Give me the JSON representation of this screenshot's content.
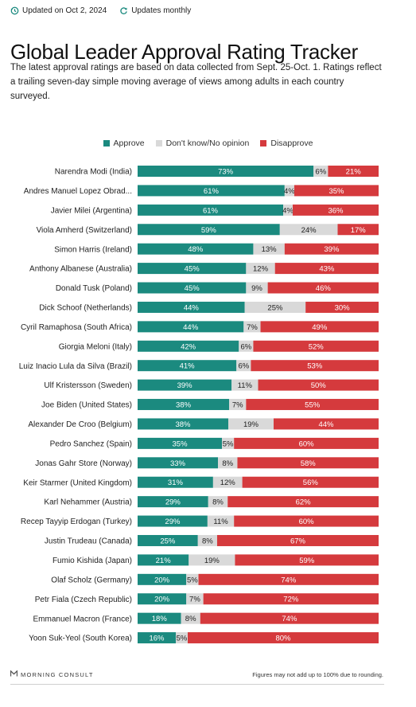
{
  "header": {
    "updated": "Updated on Oct 2, 2024",
    "frequency": "Updates monthly",
    "title": "Global Leader Approval Rating Tracker",
    "subtitle": "The latest approval ratings are based on data collected from Sept. 25-Oct. 1. Ratings reflect a trailing seven-day simple moving average of views among adults in each country surveyed."
  },
  "legend": [
    {
      "label": "Approve",
      "color": "#1b8a7f"
    },
    {
      "label": "Don't know/No opinion",
      "color": "#d9d9d9"
    },
    {
      "label": "Disapprove",
      "color": "#d53a3d"
    }
  ],
  "chart_data": {
    "type": "bar",
    "stacked": true,
    "orientation": "horizontal",
    "categories": [
      "Narendra Modi (India)",
      "Andres Manuel Lopez Obrad...",
      "Javier Milei (Argentina)",
      "Viola Amherd (Switzerland)",
      "Simon Harris (Ireland)",
      "Anthony Albanese (Australia)",
      "Donald Tusk (Poland)",
      "Dick Schoof (Netherlands)",
      "Cyril Ramaphosa (South Africa)",
      "Giorgia Meloni (Italy)",
      "Luiz Inacio Lula da Silva (Brazil)",
      "Ulf Kristersson (Sweden)",
      "Joe Biden (United States)",
      "Alexander De Croo (Belgium)",
      "Pedro Sanchez (Spain)",
      "Jonas Gahr Store (Norway)",
      "Keir Starmer (United Kingdom)",
      "Karl Nehammer (Austria)",
      "Recep Tayyip Erdogan (Turkey)",
      "Justin Trudeau (Canada)",
      "Fumio Kishida (Japan)",
      "Olaf Scholz (Germany)",
      "Petr Fiala (Czech Republic)",
      "Emmanuel Macron (France)",
      "Yoon Suk-Yeol (South Korea)"
    ],
    "series": [
      {
        "name": "Approve",
        "color": "#1b8a7f",
        "values": [
          73,
          61,
          61,
          59,
          48,
          45,
          45,
          44,
          44,
          42,
          41,
          39,
          38,
          38,
          35,
          33,
          31,
          29,
          29,
          25,
          21,
          20,
          20,
          18,
          16
        ]
      },
      {
        "name": "Don't know/No opinion",
        "color": "#d9d9d9",
        "values": [
          6,
          4,
          4,
          24,
          13,
          12,
          9,
          25,
          7,
          6,
          6,
          11,
          7,
          19,
          5,
          8,
          12,
          8,
          11,
          8,
          19,
          5,
          7,
          8,
          5
        ]
      },
      {
        "name": "Disapprove",
        "color": "#d53a3d",
        "values": [
          21,
          35,
          36,
          17,
          39,
          43,
          46,
          30,
          49,
          52,
          53,
          50,
          55,
          44,
          60,
          58,
          56,
          62,
          60,
          67,
          59,
          74,
          72,
          74,
          80
        ]
      }
    ],
    "value_suffix": "%"
  },
  "footer": {
    "brand": "MORNING CONSULT",
    "note": "Figures may not add up to 100% due to rounding."
  }
}
